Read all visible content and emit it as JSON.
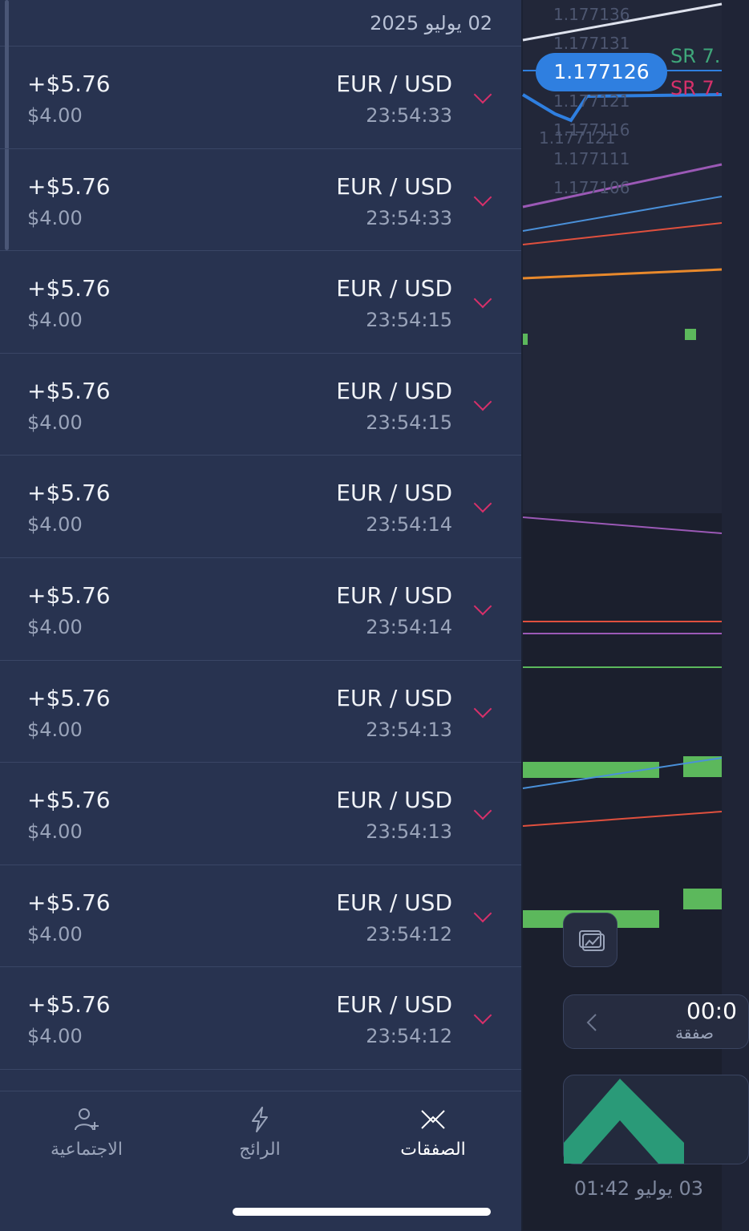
{
  "header": {
    "date": "02 يوليو 2025"
  },
  "trades": [
    {
      "profit": "+$5.76",
      "amount": "$4.00",
      "pair": "EUR / USD",
      "time": "23:54:33"
    },
    {
      "profit": "+$5.76",
      "amount": "$4.00",
      "pair": "EUR / USD",
      "time": "23:54:33"
    },
    {
      "profit": "+$5.76",
      "amount": "$4.00",
      "pair": "EUR / USD",
      "time": "23:54:15"
    },
    {
      "profit": "+$5.76",
      "amount": "$4.00",
      "pair": "EUR / USD",
      "time": "23:54:15"
    },
    {
      "profit": "+$5.76",
      "amount": "$4.00",
      "pair": "EUR / USD",
      "time": "23:54:14"
    },
    {
      "profit": "+$5.76",
      "amount": "$4.00",
      "pair": "EUR / USD",
      "time": "23:54:14"
    },
    {
      "profit": "+$5.76",
      "amount": "$4.00",
      "pair": "EUR / USD",
      "time": "23:54:13"
    },
    {
      "profit": "+$5.76",
      "amount": "$4.00",
      "pair": "EUR / USD",
      "time": "23:54:13"
    },
    {
      "profit": "+$5.76",
      "amount": "$4.00",
      "pair": "EUR / USD",
      "time": "23:54:12"
    },
    {
      "profit": "+$5.76",
      "amount": "$4.00",
      "pair": "EUR / USD",
      "time": "23:54:12"
    }
  ],
  "tabs": [
    {
      "label": "الاجتماعية",
      "icon": "add-user-icon"
    },
    {
      "label": "الرائج",
      "icon": "lightning-icon"
    },
    {
      "label": "الصفقات",
      "icon": "trades-icon",
      "active": true
    }
  ],
  "chart": {
    "price_ticks": [
      "1.177136",
      "1.177131",
      "1.177121",
      "1.177116",
      "1.177121",
      "1.177111",
      "1.177106"
    ],
    "current_price": "1.177126",
    "sr_labels": [
      "SR 7.",
      "SR 7."
    ],
    "timer": "00:0",
    "timer_caption": "صفقة",
    "bottom_date": "03 يوليو 01:42",
    "colors": {
      "accent_blue": "#2f7fe0",
      "sr_green": "#3fa77a",
      "sr_red": "#d7306a",
      "bar_green": "#5cb85c"
    }
  }
}
